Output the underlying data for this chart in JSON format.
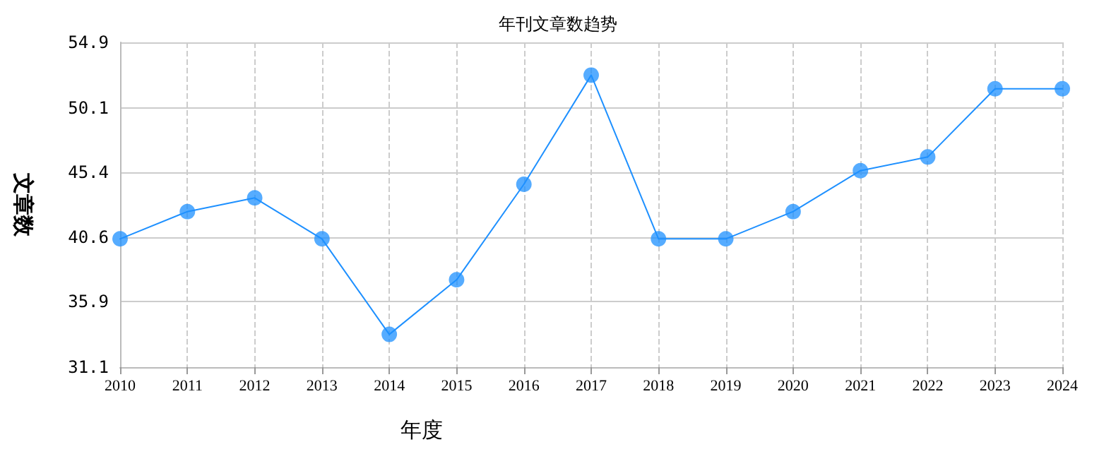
{
  "chart_data": {
    "type": "line",
    "title": "年刊文章数趋势",
    "xlabel": "年度",
    "ylabel": "文章数",
    "categories": [
      "2010",
      "2011",
      "2012",
      "2013",
      "2014",
      "2015",
      "2016",
      "2017",
      "2018",
      "2019",
      "2020",
      "2021",
      "2022",
      "2023",
      "2024"
    ],
    "series": [
      {
        "color": "#1e90ff",
        "values": [
          40.5,
          42.5,
          43.5,
          40.5,
          33.5,
          37.5,
          44.5,
          52.5,
          40.5,
          40.5,
          42.5,
          45.5,
          46.5,
          51.5,
          51.5
        ]
      }
    ],
    "ylim": [
      31.1,
      54.9
    ],
    "yticks": [
      31.1,
      35.9,
      40.6,
      45.4,
      50.1,
      54.9
    ],
    "grid": true,
    "marker": "circle",
    "line_style": "solid"
  }
}
